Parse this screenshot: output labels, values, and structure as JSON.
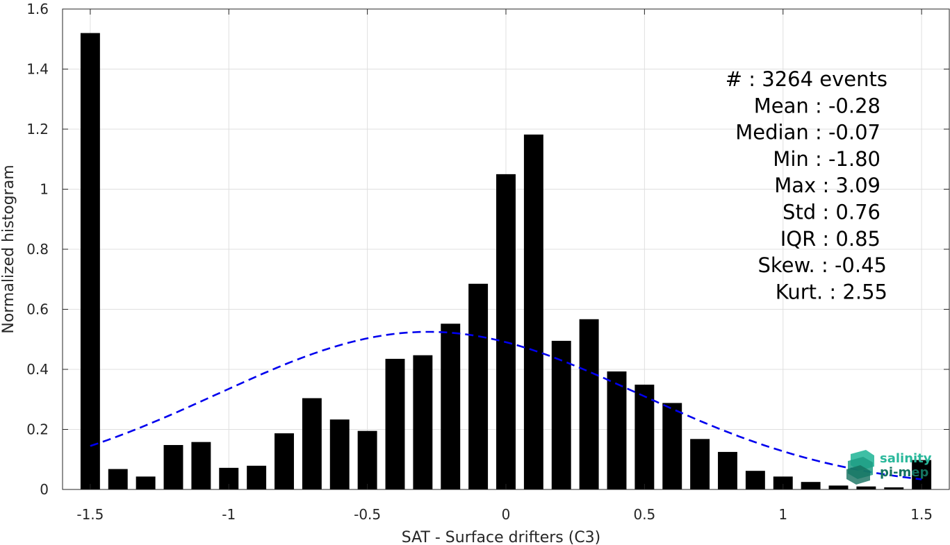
{
  "chart_data": {
    "type": "bar",
    "xlabel": "SAT - Surface drifters (C3)",
    "ylabel": "Normalized histogram",
    "xlim": [
      -1.6,
      1.6
    ],
    "ylim": [
      0,
      1.6
    ],
    "grid": true,
    "xticks": [
      -1.5,
      -1,
      -0.5,
      0,
      0.5,
      1,
      1.5
    ],
    "xtick_labels": [
      "-1.5",
      "-1",
      "-0.5",
      "0",
      "0.5",
      "1",
      "1.5"
    ],
    "yticks": [
      0,
      0.2,
      0.4,
      0.6,
      0.8,
      1,
      1.2,
      1.4,
      1.6
    ],
    "ytick_labels": [
      "0",
      "0.2",
      "0.4",
      "0.6",
      "0.8",
      "1",
      "1.2",
      "1.4",
      "1.6"
    ],
    "bar_color": "#000000",
    "bin_width": 0.1,
    "x": [
      -1.5,
      -1.4,
      -1.3,
      -1.2,
      -1.1,
      -1.0,
      -0.9,
      -0.8,
      -0.7,
      -0.6,
      -0.5,
      -0.4,
      -0.3,
      -0.2,
      -0.1,
      0.0,
      0.1,
      0.2,
      0.3,
      0.4,
      0.5,
      0.6,
      0.7,
      0.8,
      0.9,
      1.0,
      1.1,
      1.2,
      1.3,
      1.4,
      1.5
    ],
    "values": [
      1.52,
      0.068,
      0.043,
      0.148,
      0.158,
      0.072,
      0.079,
      0.187,
      0.304,
      0.233,
      0.195,
      0.435,
      0.447,
      0.552,
      0.685,
      1.05,
      1.182,
      0.495,
      0.567,
      0.393,
      0.349,
      0.288,
      0.168,
      0.125,
      0.062,
      0.043,
      0.025,
      0.013,
      0.01,
      0.007,
      0.098
    ],
    "fit_curve": {
      "style": "dashed",
      "color": "#0000ee",
      "distribution": "normal",
      "mean": -0.28,
      "std": 0.76,
      "x_range": [
        -1.5,
        1.5
      ]
    },
    "stats": [
      "#  : 3264 events",
      "Mean : -0.28",
      "Median : -0.07",
      "Min : -1.80",
      "Max : 3.09",
      "Std : 0.76",
      "IQR : 0.85",
      "Skew. : -0.45",
      "Kurt. : 2.55"
    ]
  },
  "logo": {
    "line1": "salinity",
    "line2": "pi-mep",
    "color1": "#2ab89b",
    "color2": "#14715f"
  }
}
